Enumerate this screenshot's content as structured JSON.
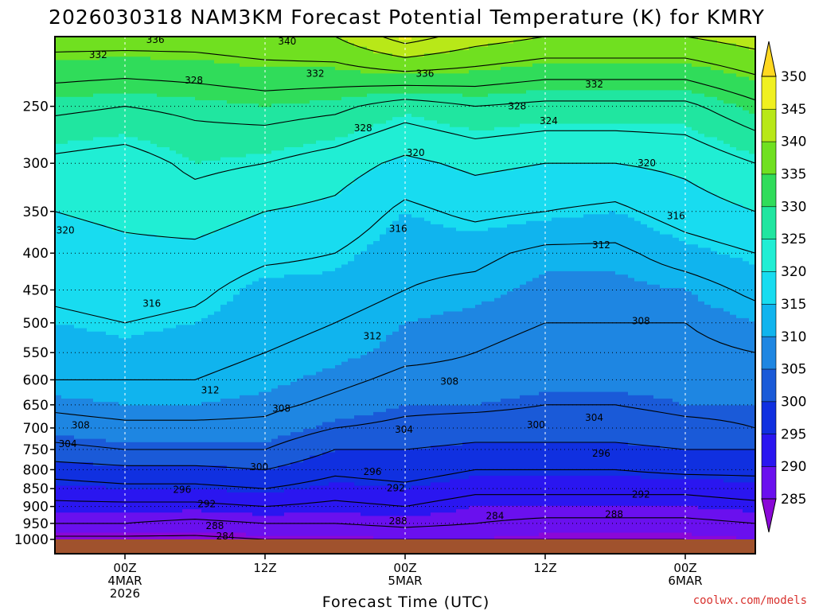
{
  "chart_data": {
    "type": "contour",
    "title": "2026030318 NAM3KM Forecast Potential Temperature (K) for KMRY",
    "xlabel": "Forecast Time (UTC)",
    "ylabel": "",
    "y_scale": "log-pressure",
    "ylim": [
      1000,
      200
    ],
    "y_ticks": [
      "250",
      "300",
      "350",
      "400",
      "450",
      "500",
      "550",
      "600",
      "650",
      "700",
      "750",
      "800",
      "850",
      "900",
      "950",
      "1000"
    ],
    "x_range_hours_since_init": [
      0,
      60
    ],
    "x_ticks": [
      {
        "hour": 6,
        "lines": [
          "00Z",
          "4MAR",
          "2026"
        ]
      },
      {
        "hour": 18,
        "lines": [
          "12Z"
        ]
      },
      {
        "hour": 30,
        "lines": [
          "00Z",
          "5MAR"
        ]
      },
      {
        "hour": 42,
        "lines": [
          "12Z"
        ]
      },
      {
        "hour": 54,
        "lines": [
          "00Z",
          "6MAR"
        ]
      }
    ],
    "colorbar": {
      "levels": [
        285,
        290,
        295,
        300,
        305,
        310,
        315,
        320,
        325,
        330,
        335,
        340,
        345,
        350
      ],
      "labels": [
        "350",
        "345",
        "340",
        "335",
        "330",
        "325",
        "320",
        "315",
        "310",
        "305",
        "300",
        "295",
        "290",
        "285"
      ],
      "colors": [
        "#8a08d8",
        "#6a10ee",
        "#2a16f0",
        "#1030e0",
        "#1a5ad8",
        "#1e86e2",
        "#10b4ee",
        "#18dcf0",
        "#20eed4",
        "#20e6a0",
        "#30dc5a",
        "#70e020",
        "#b8e818",
        "#f0f020",
        "#ffd820"
      ]
    },
    "ground_color": "#a0522d",
    "grid": true,
    "profile_levels_hpa": [
      1000,
      950,
      900,
      850,
      800,
      750,
      700,
      650,
      600,
      550,
      500,
      450,
      400,
      350,
      300,
      250,
      200
    ],
    "profile_hours": [
      0,
      6,
      12,
      18,
      24,
      30,
      36,
      42,
      48,
      54,
      60
    ],
    "theta_k": [
      [
        283,
        288,
        291,
        294,
        298,
        303,
        306,
        309,
        312,
        313,
        315,
        317,
        318,
        320,
        323,
        329,
        338
      ],
      [
        283,
        288,
        291,
        295,
        299,
        304,
        307,
        310,
        312,
        314,
        316,
        318,
        319,
        321,
        322,
        328,
        338
      ],
      [
        283,
        287,
        291,
        295,
        299,
        304,
        307,
        310,
        312,
        313,
        315,
        317,
        319,
        322,
        325,
        329,
        338
      ],
      [
        284,
        288,
        292,
        296,
        300,
        304,
        307,
        309,
        311,
        312,
        313,
        314,
        317,
        320,
        324,
        330,
        339
      ],
      [
        284,
        288,
        291,
        294,
        297,
        300,
        304,
        307,
        309,
        311,
        312,
        314,
        316,
        319,
        322,
        329,
        340
      ],
      [
        285,
        289,
        292,
        295,
        298,
        300,
        303,
        305,
        307,
        309,
        310,
        312,
        313,
        315,
        319,
        326,
        346
      ],
      [
        285,
        288,
        290,
        293,
        296,
        299,
        302,
        305,
        307,
        308,
        309,
        311,
        313,
        317,
        321,
        328,
        342
      ],
      [
        284,
        287,
        290,
        293,
        296,
        299,
        302,
        304,
        306,
        307,
        308,
        309,
        311,
        316,
        320,
        327,
        340
      ],
      [
        284,
        287,
        290,
        293,
        296,
        299,
        302,
        304,
        306,
        307,
        308,
        309,
        311,
        315,
        320,
        327,
        340
      ],
      [
        284,
        287,
        290,
        293,
        297,
        300,
        303,
        305,
        306,
        307,
        308,
        310,
        314,
        318,
        321,
        327,
        340
      ],
      [
        285,
        288,
        291,
        294,
        297,
        300,
        304,
        305,
        307,
        308,
        310,
        313,
        316,
        320,
        324,
        331,
        342
      ]
    ],
    "contour_labels": [
      {
        "text": "336",
        "hour": 8.6,
        "hpa": 202
      },
      {
        "text": "340",
        "hour": 19.9,
        "hpa": 203
      },
      {
        "text": "332",
        "hour": 3.7,
        "hpa": 212
      },
      {
        "text": "328",
        "hour": 11.9,
        "hpa": 230
      },
      {
        "text": "332",
        "hour": 22.3,
        "hpa": 225
      },
      {
        "text": "336",
        "hour": 31.7,
        "hpa": 225
      },
      {
        "text": "332",
        "hour": 46.2,
        "hpa": 233
      },
      {
        "text": "328",
        "hour": 26.4,
        "hpa": 268
      },
      {
        "text": "328",
        "hour": 39.6,
        "hpa": 250
      },
      {
        "text": "324",
        "hour": 42.3,
        "hpa": 262
      },
      {
        "text": "320",
        "hour": 30.9,
        "hpa": 290
      },
      {
        "text": "320",
        "hour": 50.7,
        "hpa": 300
      },
      {
        "text": "316",
        "hour": 53.2,
        "hpa": 355
      },
      {
        "text": "320",
        "hour": 0.9,
        "hpa": 372
      },
      {
        "text": "316",
        "hour": 29.4,
        "hpa": 370
      },
      {
        "text": "312",
        "hour": 46.8,
        "hpa": 390
      },
      {
        "text": "316",
        "hour": 8.3,
        "hpa": 470
      },
      {
        "text": "308",
        "hour": 50.2,
        "hpa": 497
      },
      {
        "text": "312",
        "hour": 27.2,
        "hpa": 522
      },
      {
        "text": "308",
        "hour": 33.8,
        "hpa": 603
      },
      {
        "text": "312",
        "hour": 13.3,
        "hpa": 620
      },
      {
        "text": "308",
        "hour": 19.4,
        "hpa": 658
      },
      {
        "text": "304",
        "hour": 46.2,
        "hpa": 677
      },
      {
        "text": "308",
        "hour": 2.2,
        "hpa": 694
      },
      {
        "text": "304",
        "hour": 29.9,
        "hpa": 704
      },
      {
        "text": "300",
        "hour": 41.2,
        "hpa": 693
      },
      {
        "text": "304",
        "hour": 1.1,
        "hpa": 737
      },
      {
        "text": "296",
        "hour": 46.8,
        "hpa": 760
      },
      {
        "text": "300",
        "hour": 17.5,
        "hpa": 793
      },
      {
        "text": "296",
        "hour": 27.2,
        "hpa": 805
      },
      {
        "text": "292",
        "hour": 29.2,
        "hpa": 848
      },
      {
        "text": "296",
        "hour": 10.9,
        "hpa": 853
      },
      {
        "text": "292",
        "hour": 50.2,
        "hpa": 866
      },
      {
        "text": "292",
        "hour": 13.0,
        "hpa": 893
      },
      {
        "text": "288",
        "hour": 47.9,
        "hpa": 923
      },
      {
        "text": "284",
        "hour": 37.7,
        "hpa": 928
      },
      {
        "text": "288",
        "hour": 29.4,
        "hpa": 943
      },
      {
        "text": "288",
        "hour": 13.7,
        "hpa": 958
      },
      {
        "text": "284",
        "hour": 14.6,
        "hpa": 990
      }
    ]
  },
  "credit": "coolwx.com/models"
}
